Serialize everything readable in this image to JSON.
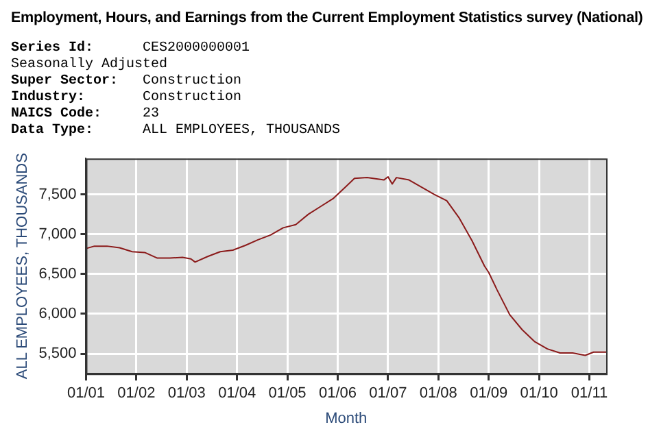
{
  "chart_data": {
    "type": "line",
    "title": "Employment, Hours, and Earnings from the Current Employment Statistics survey (National)",
    "annotations": [
      "Series Id: CES2000000001",
      "Seasonally Adjusted",
      "Super Sector: Construction",
      "Industry: Construction",
      "NAICS Code: 23",
      "Data Type: ALL EMPLOYEES, THOUSANDS"
    ],
    "xlabel": "Month",
    "ylabel": "ALL EMPLOYEES, THOUSANDS",
    "x": [
      "2001-01",
      "2001-03",
      "2001-06",
      "2001-09",
      "2001-12",
      "2002-03",
      "2002-06",
      "2002-09",
      "2002-12",
      "2003-02",
      "2003-03",
      "2003-06",
      "2003-09",
      "2003-12",
      "2004-03",
      "2004-06",
      "2004-09",
      "2004-12",
      "2005-03",
      "2005-06",
      "2005-09",
      "2005-12",
      "2006-03",
      "2006-05",
      "2006-08",
      "2006-12",
      "2007-01",
      "2007-02",
      "2007-03",
      "2007-06",
      "2007-09",
      "2007-12",
      "2008-03",
      "2008-06",
      "2008-09",
      "2008-12",
      "2009-01",
      "2009-03",
      "2009-06",
      "2009-09",
      "2009-12",
      "2010-03",
      "2010-06",
      "2010-09",
      "2010-12",
      "2011-02",
      "2011-05"
    ],
    "series": [
      {
        "color": "#8b1a1a",
        "values": [
          6820,
          6850,
          6850,
          6830,
          6780,
          6770,
          6700,
          6700,
          6710,
          6690,
          6650,
          6720,
          6780,
          6800,
          6860,
          6930,
          6990,
          7080,
          7120,
          7250,
          7350,
          7450,
          7600,
          7700,
          7710,
          7680,
          7720,
          7630,
          7710,
          7680,
          7590,
          7500,
          7420,
          7200,
          6920,
          6600,
          6520,
          6300,
          5990,
          5800,
          5650,
          5560,
          5510,
          5510,
          5480,
          5520,
          5520
        ]
      }
    ],
    "xlim": [
      "2001-01",
      "2011-05"
    ],
    "xticks": [
      {
        "value": "2001-01",
        "label": "01/01"
      },
      {
        "value": "2002-01",
        "label": "01/02"
      },
      {
        "value": "2003-01",
        "label": "01/03"
      },
      {
        "value": "2004-01",
        "label": "01/04"
      },
      {
        "value": "2005-01",
        "label": "01/05"
      },
      {
        "value": "2006-01",
        "label": "01/06"
      },
      {
        "value": "2007-01",
        "label": "01/07"
      },
      {
        "value": "2008-01",
        "label": "01/08"
      },
      {
        "value": "2009-01",
        "label": "01/09"
      },
      {
        "value": "2010-01",
        "label": "01/10"
      },
      {
        "value": "2011-01",
        "label": "01/11"
      }
    ],
    "ylim": [
      5250,
      7950
    ],
    "yticks": [
      {
        "value": 5500,
        "label": "5,500"
      },
      {
        "value": 6000,
        "label": "6,000"
      },
      {
        "value": 6500,
        "label": "6,500"
      },
      {
        "value": 7000,
        "label": "7,000"
      },
      {
        "value": 7500,
        "label": "7,500"
      }
    ],
    "grid": true,
    "legend": false,
    "marker": "none",
    "line_style": "solid"
  }
}
